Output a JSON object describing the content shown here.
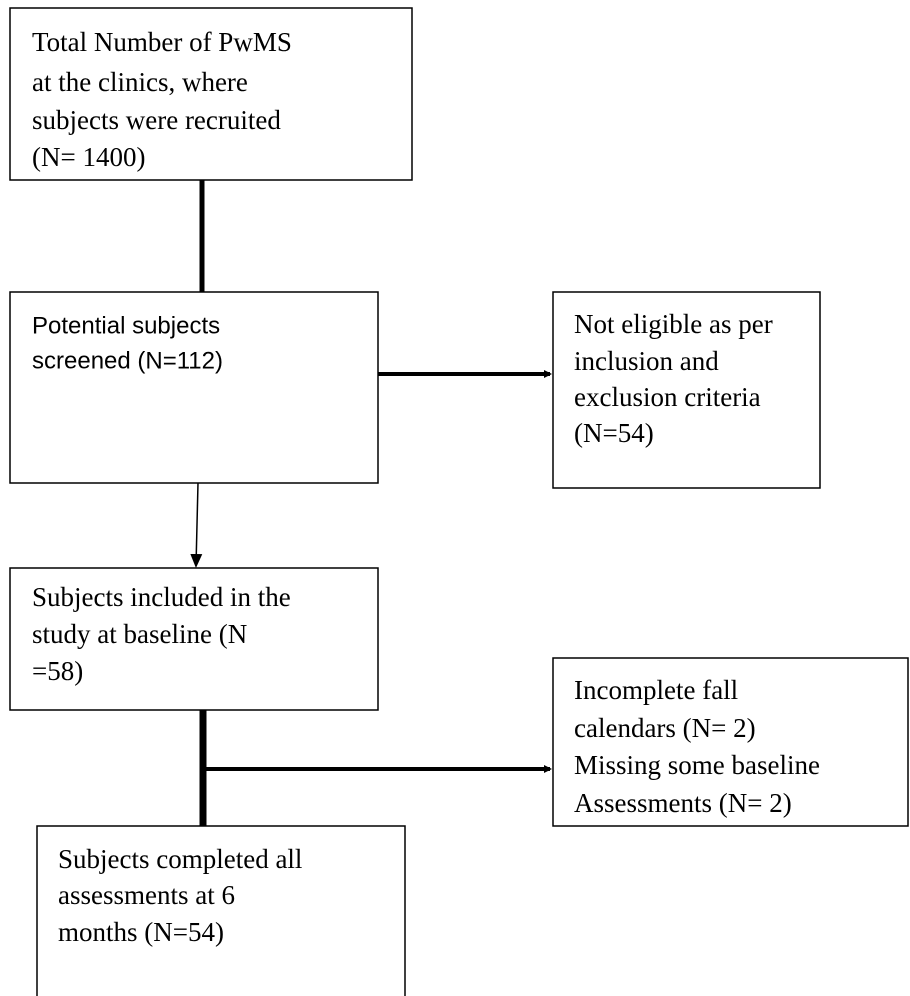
{
  "nodes": [
    {
      "lines": [
        "Total Number of PwMS",
        "at the clinics, where",
        "subjects were recruited",
        "(N= 1400)"
      ]
    },
    {
      "lines": [
        "Potential subjects",
        "screened (N=112)"
      ]
    },
    {
      "lines": [
        "Not eligible as per",
        "inclusion and",
        "exclusion criteria",
        "(N=54)"
      ]
    },
    {
      "lines": [
        "Subjects included in the",
        "study at baseline (N",
        "=58)"
      ]
    },
    {
      "lines": [
        "Incomplete fall",
        "calendars (N= 2)",
        "Missing some baseline",
        "Assessments (N= 2)"
      ]
    },
    {
      "lines": [
        "Subjects completed all",
        "assessments at 6",
        "months (N=54)"
      ]
    }
  ]
}
